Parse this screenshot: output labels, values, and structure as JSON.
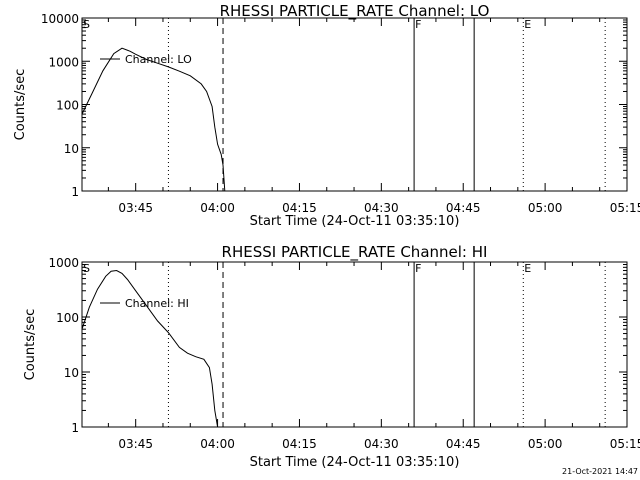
{
  "footer": {
    "timestamp": "21-Oct-2021 14:47"
  },
  "chart_data": [
    {
      "type": "line",
      "title": "RHESSI PARTICLE_RATE Channel: LO",
      "xlabel": "Start Time (24-Oct-11 03:35:10)",
      "ylabel": "Counts/sec",
      "yscale": "log",
      "xlim": [
        "03:35:10",
        "05:15"
      ],
      "ylim": [
        1,
        10000
      ],
      "xticks": [
        "03:45",
        "04:00",
        "04:15",
        "04:30",
        "04:45",
        "05:00",
        "05:15"
      ],
      "yticks": [
        "1",
        "10",
        "100",
        "1000",
        "10000"
      ],
      "legend": "top-left",
      "series": [
        {
          "name": "Channel: LO",
          "x": [
            "03:35:10",
            "03:37:00",
            "03:39:00",
            "03:41:00",
            "03:42:30",
            "03:44:00",
            "03:45:00",
            "03:47:00",
            "03:49:00",
            "03:51:00",
            "03:53:00",
            "03:55:00",
            "03:57:00",
            "03:58:00",
            "03:59:00",
            "03:59:30",
            "04:00:00",
            "04:00:40",
            "04:01:00",
            "04:01:20"
          ],
          "y": [
            60,
            180,
            600,
            1500,
            2000,
            1700,
            1450,
            1100,
            900,
            740,
            590,
            460,
            300,
            200,
            90,
            30,
            12,
            7,
            4,
            1
          ]
        }
      ],
      "markers": [
        {
          "label": "S",
          "time": "03:35:10",
          "style": "none"
        },
        {
          "label": "",
          "time": "03:51:00",
          "style": "dotted"
        },
        {
          "label": "",
          "time": "04:01:00",
          "style": "dashed"
        },
        {
          "label": "F",
          "time": "04:36:00",
          "style": "solid"
        },
        {
          "label": "",
          "time": "04:47:00",
          "style": "solid"
        },
        {
          "label": "E",
          "time": "04:56:00",
          "style": "dotted"
        },
        {
          "label": "",
          "time": "05:11:00",
          "style": "dotted"
        }
      ]
    },
    {
      "type": "line",
      "title": "RHESSI PARTICLE_RATE Channel: HI",
      "xlabel": "Start Time (24-Oct-11 03:35:10)",
      "ylabel": "Counts/sec",
      "yscale": "log",
      "xlim": [
        "03:35:10",
        "05:15"
      ],
      "ylim": [
        1,
        1000
      ],
      "xticks": [
        "03:45",
        "04:00",
        "04:15",
        "04:30",
        "04:45",
        "05:00",
        "05:15"
      ],
      "yticks": [
        "1",
        "10",
        "100",
        "1000"
      ],
      "legend": "top-left",
      "series": [
        {
          "name": "Channel: HI",
          "x": [
            "03:35:10",
            "03:36:30",
            "03:38:00",
            "03:39:30",
            "03:40:30",
            "03:41:30",
            "03:42:30",
            "03:43:30",
            "03:45:00",
            "03:47:00",
            "03:49:00",
            "03:51:00",
            "03:53:00",
            "03:54:30",
            "03:56:00",
            "03:57:30",
            "03:58:30",
            "03:59:00",
            "03:59:30",
            "04:00:00"
          ],
          "y": [
            60,
            150,
            320,
            550,
            680,
            700,
            620,
            480,
            300,
            160,
            85,
            52,
            28,
            22,
            19,
            17,
            12,
            6,
            2,
            1
          ]
        }
      ],
      "markers": [
        {
          "label": "S",
          "time": "03:35:10",
          "style": "none"
        },
        {
          "label": "",
          "time": "03:51:00",
          "style": "dotted"
        },
        {
          "label": "",
          "time": "04:01:00",
          "style": "dashed"
        },
        {
          "label": "F",
          "time": "04:36:00",
          "style": "solid"
        },
        {
          "label": "",
          "time": "04:47:00",
          "style": "solid"
        },
        {
          "label": "E",
          "time": "04:56:00",
          "style": "dotted"
        },
        {
          "label": "",
          "time": "05:11:00",
          "style": "dotted"
        }
      ]
    }
  ]
}
